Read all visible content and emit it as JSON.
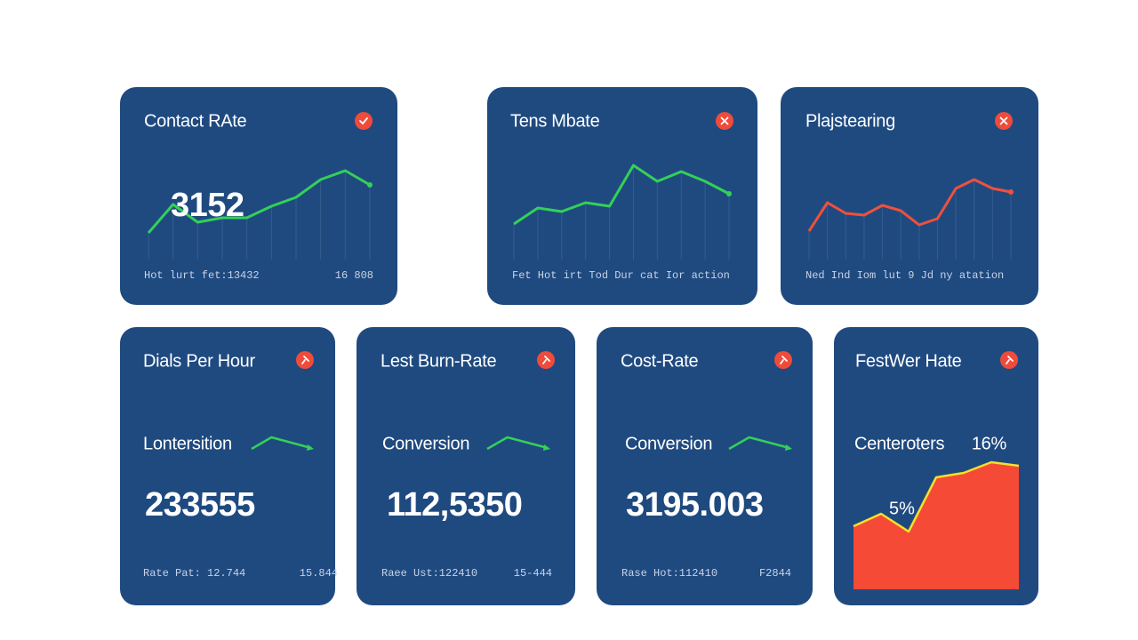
{
  "cards": [
    {
      "title": "Contact RAte",
      "icon": "check",
      "value": "3152",
      "footer_left": "Hot lurt fet:13432",
      "footer_right": "16 808",
      "spark": {
        "type": "line",
        "color": "#34d058",
        "ylim": [
          0,
          100
        ],
        "values": [
          18,
          50,
          30,
          35,
          35,
          48,
          58,
          78,
          88,
          72
        ]
      }
    },
    {
      "title": "Tens Mbate",
      "icon": "close",
      "footer_left": "Fet Hot irt Tod Dur cat Ior action",
      "spark": {
        "type": "line",
        "color": "#34d058",
        "ylim": [
          0,
          100
        ],
        "values": [
          28,
          46,
          42,
          52,
          48,
          94,
          76,
          87,
          76,
          62
        ]
      }
    },
    {
      "title": "Plajstearing",
      "icon": "close",
      "footer_left": "Ned Ind Iom lut 9 Jd ny atation",
      "spark": {
        "type": "line",
        "color": "#f0503c",
        "ylim": [
          0,
          100
        ],
        "values": [
          20,
          52,
          40,
          38,
          49,
          43,
          27,
          34,
          68,
          78,
          68,
          64
        ]
      }
    },
    {
      "title": "Dials Per Hour",
      "icon": "pin",
      "label": "Lontersition",
      "value": "233555",
      "footer_left": "Rate Pat: 12.744",
      "footer_right": "15.844",
      "spark": {
        "type": "mini",
        "color": "#34d058",
        "ylim": [
          0,
          15
        ],
        "values": [
          0,
          13,
          7,
          1
        ]
      }
    },
    {
      "title": "Lest Burn-Rate",
      "icon": "pin",
      "label": "Conversion",
      "value": "112,5350",
      "footer_left": "Raee Ust:122410",
      "footer_right": "15-444",
      "spark": {
        "type": "mini",
        "color": "#34d058",
        "ylim": [
          0,
          15
        ],
        "values": [
          0,
          13,
          7,
          1
        ]
      }
    },
    {
      "title": "Cost-Rate",
      "icon": "pin",
      "label": "Conversion",
      "value": "3195.003",
      "footer_left": "Rase Hot:112410",
      "footer_right": "F2844",
      "spark": {
        "type": "mini",
        "color": "#34d058",
        "ylim": [
          0,
          15
        ],
        "values": [
          0,
          13,
          7,
          1
        ]
      }
    },
    {
      "title": "FestWer Hate",
      "icon": "pin",
      "label": "Centeroters",
      "badge": "16%",
      "note": "5%",
      "spark": {
        "type": "area",
        "color": "#f54a36",
        "ylim": [
          0,
          150
        ],
        "values": [
          71,
          85,
          65,
          126,
          131,
          143,
          139
        ]
      }
    }
  ]
}
